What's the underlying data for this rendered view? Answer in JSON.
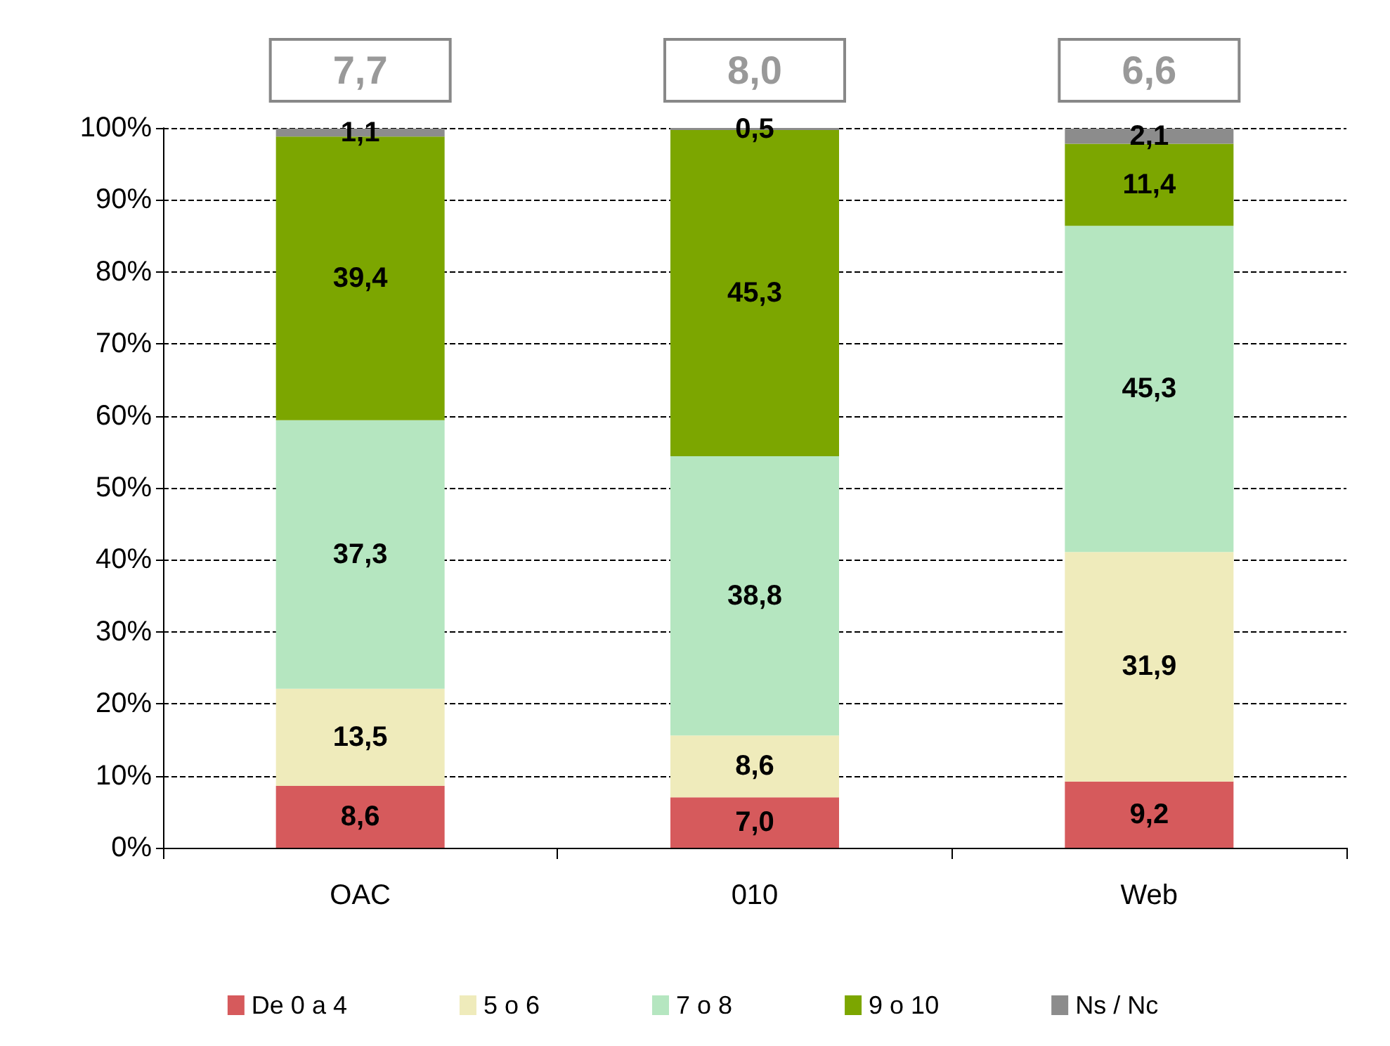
{
  "chart_data": {
    "type": "bar",
    "stacked": true,
    "categories": [
      "OAC",
      "010",
      "Web"
    ],
    "series": [
      {
        "name": "De 0 a 4",
        "color": "#d65a5c",
        "values": [
          8.6,
          7.0,
          9.2
        ],
        "value_labels": [
          "8,6",
          "7,0",
          "9,2"
        ]
      },
      {
        "name": "5 o 6",
        "color": "#efebbb",
        "values": [
          13.5,
          8.6,
          31.9
        ],
        "value_labels": [
          "13,5",
          "8,6",
          "31,9"
        ]
      },
      {
        "name": "7 o 8",
        "color": "#b5e6c0",
        "values": [
          37.3,
          38.8,
          45.3
        ],
        "value_labels": [
          "37,3",
          "38,8",
          "45,3"
        ]
      },
      {
        "name": "9 o 10",
        "color": "#7ca600",
        "values": [
          39.4,
          45.3,
          11.4
        ],
        "value_labels": [
          "39,4",
          "45,3",
          "11,4"
        ]
      },
      {
        "name": "Ns / Nc",
        "color": "#8c8c8c",
        "values": [
          1.1,
          0.5,
          2.1
        ],
        "value_labels": [
          "1,1",
          "0,5",
          "2,1"
        ]
      }
    ],
    "ylim": [
      0,
      100
    ],
    "yticks": [
      {
        "value": 0,
        "label": "0%"
      },
      {
        "value": 10,
        "label": "10%"
      },
      {
        "value": 20,
        "label": "20%"
      },
      {
        "value": 30,
        "label": "30%"
      },
      {
        "value": 40,
        "label": "40%"
      },
      {
        "value": 50,
        "label": "50%"
      },
      {
        "value": 60,
        "label": "60%"
      },
      {
        "value": 70,
        "label": "70%"
      },
      {
        "value": 80,
        "label": "80%"
      },
      {
        "value": 90,
        "label": "90%"
      },
      {
        "value": 100,
        "label": "100%"
      }
    ],
    "annotations": [
      "7,7",
      "8,0",
      "6,6"
    ],
    "grid": "y",
    "legend": "bottom"
  }
}
